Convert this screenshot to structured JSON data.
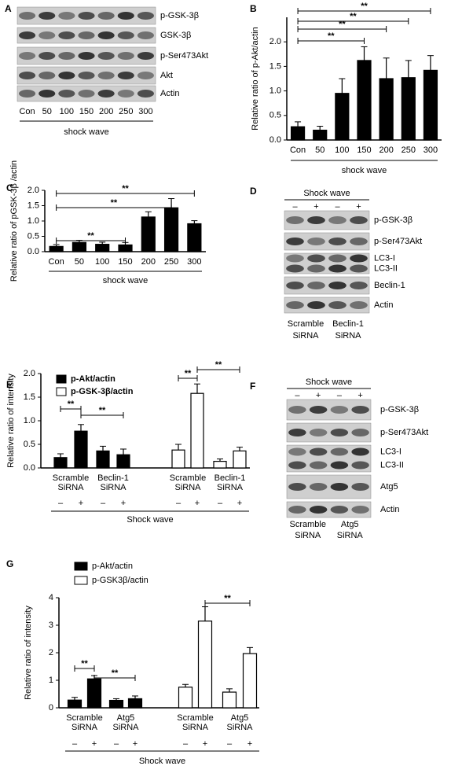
{
  "chart_data": [
    {
      "type": "bar",
      "panel": "B",
      "ylabel": "Relative ratio of p-Akt/actin",
      "xlabel": "shock wave",
      "categories": [
        "Con",
        "50",
        "100",
        "150",
        "200",
        "250",
        "300"
      ],
      "values": [
        0.27,
        0.2,
        0.95,
        1.62,
        1.25,
        1.27,
        1.42
      ],
      "errors": [
        0.1,
        0.08,
        0.3,
        0.28,
        0.42,
        0.35,
        0.3
      ],
      "color": "#000000",
      "ylim": [
        0,
        2.5
      ],
      "yticks": [
        {
          "value": 0,
          "label": "0.0"
        },
        {
          "value": 0.5,
          "label": "0.5"
        },
        {
          "value": 1,
          "label": "1.0"
        },
        {
          "value": 1.5,
          "label": "1.5"
        },
        {
          "value": 2,
          "label": "2.0"
        }
      ],
      "brackets": [
        {
          "from": 0,
          "to": 3,
          "label": "**"
        },
        {
          "from": 0,
          "to": 4,
          "label": "**"
        },
        {
          "from": 0,
          "to": 5,
          "label": "**"
        },
        {
          "from": 0,
          "to": 6,
          "label": "**"
        }
      ]
    },
    {
      "type": "bar",
      "panel": "C",
      "ylabel": "Relative ratio of pGSK-3β /actin",
      "xlabel": "shock wave",
      "categories": [
        "Con",
        "50",
        "100",
        "150",
        "200",
        "250",
        "300"
      ],
      "values": [
        0.17,
        0.3,
        0.24,
        0.22,
        1.13,
        1.43,
        0.91
      ],
      "errors": [
        0.06,
        0.07,
        0.07,
        0.08,
        0.17,
        0.3,
        0.1
      ],
      "color": "#000000",
      "ylim": [
        0,
        2
      ],
      "yticks": [
        {
          "value": 0,
          "label": "0.0"
        },
        {
          "value": 0.5,
          "label": "0.5"
        },
        {
          "value": 1,
          "label": "1.0"
        },
        {
          "value": 1.5,
          "label": "1.5"
        },
        {
          "value": 2,
          "label": "2.0"
        }
      ],
      "brackets": [
        {
          "from": 0,
          "to": 3,
          "label": "**"
        },
        {
          "from": 0,
          "to": 5,
          "label": "**"
        },
        {
          "from": 0,
          "to": 6,
          "label": "**"
        }
      ]
    },
    {
      "type": "grouped_bar",
      "panel": "E",
      "ylabel": "Relative ratio of  intensity",
      "xlabel": "Shock wave",
      "group_labels": [
        [
          "Scramble",
          "SiRNA"
        ],
        [
          "Beclin-1",
          "SiRNA"
        ]
      ],
      "treatment": [
        "–",
        "+"
      ],
      "series": [
        {
          "name": "p-Akt/actin",
          "color": "#000000",
          "values": [
            0.22,
            0.78,
            0.36,
            0.28
          ],
          "errors": [
            0.08,
            0.14,
            0.1,
            0.12
          ]
        },
        {
          "name": "p-GSK-3β/actin",
          "color": "#ffffff",
          "values": [
            0.38,
            1.58,
            0.14,
            0.36
          ],
          "errors": [
            0.12,
            0.2,
            0.05,
            0.08
          ]
        }
      ],
      "ylim": [
        0,
        2
      ],
      "yticks": [
        {
          "value": 0,
          "label": "0.0"
        },
        {
          "value": 0.5,
          "label": "0.5"
        },
        {
          "value": 1,
          "label": "1.0"
        },
        {
          "value": 1.5,
          "label": "1.5"
        },
        {
          "value": 2,
          "label": "2.0"
        }
      ],
      "brackets": [
        {
          "series": 0,
          "from": 0,
          "to": 1,
          "label": "**"
        },
        {
          "series": 0,
          "from": 1,
          "to": 3,
          "label": "**"
        },
        {
          "series": 1,
          "from": 0,
          "to": 1,
          "label": "**"
        },
        {
          "series": 1,
          "from": 1,
          "to": 3,
          "label": "**"
        }
      ]
    },
    {
      "type": "grouped_bar",
      "panel": "G",
      "ylabel": "Relative ratio of  intensity",
      "xlabel": "Shock wave",
      "group_labels": [
        [
          "Scramble",
          "SiRNA"
        ],
        [
          "Atg5",
          "SiRNA"
        ]
      ],
      "treatment": [
        "–",
        "+"
      ],
      "series": [
        {
          "name": "p-Akt/actin",
          "color": "#000000",
          "values": [
            0.28,
            1.05,
            0.27,
            0.33
          ],
          "errors": [
            0.1,
            0.12,
            0.06,
            0.1
          ]
        },
        {
          "name": "p-GSK3β/actin",
          "color": "#ffffff",
          "values": [
            0.75,
            3.15,
            0.57,
            1.97
          ],
          "errors": [
            0.1,
            0.52,
            0.12,
            0.22
          ]
        }
      ],
      "ylim": [
        0,
        4
      ],
      "yticks": [
        0,
        1,
        2,
        3,
        4
      ],
      "brackets": [
        {
          "series": 0,
          "from": 0,
          "to": 1,
          "label": "**"
        },
        {
          "series": 0,
          "from": 1,
          "to": 3,
          "label": "**"
        },
        {
          "series": 1,
          "from": 1,
          "to": 3,
          "label": "**"
        }
      ]
    }
  ],
  "blots": [
    {
      "panel": "A",
      "rows": [
        "p-GSK-3β",
        "GSK-3β",
        "p-Ser473Akt",
        "Akt",
        "Actin"
      ],
      "lanes": [
        "Con",
        "50",
        "100",
        "150",
        "200",
        "250",
        "300"
      ],
      "xlabel": "shock wave"
    },
    {
      "panel": "D",
      "title": "Shock wave",
      "signs": [
        "–",
        "+",
        "–",
        "+"
      ],
      "rows": [
        "p-GSK-3β",
        "p-Ser473Akt",
        "LC3-I",
        "LC3-II",
        "Beclin-1",
        "Actin"
      ],
      "groups": [
        [
          "Scramble",
          "SiRNA"
        ],
        [
          "Beclin-1",
          "SiRNA"
        ]
      ]
    },
    {
      "panel": "F",
      "title": "Shock wave",
      "signs": [
        "–",
        "+",
        "–",
        "+"
      ],
      "rows": [
        "p-GSK-3β",
        "p-Ser473Akt",
        "LC3-I",
        "LC3-II",
        "Atg5",
        "Actin"
      ],
      "groups": [
        [
          "Scramble",
          "SiRNA"
        ],
        [
          "Atg5",
          "SiRNA"
        ]
      ]
    }
  ]
}
